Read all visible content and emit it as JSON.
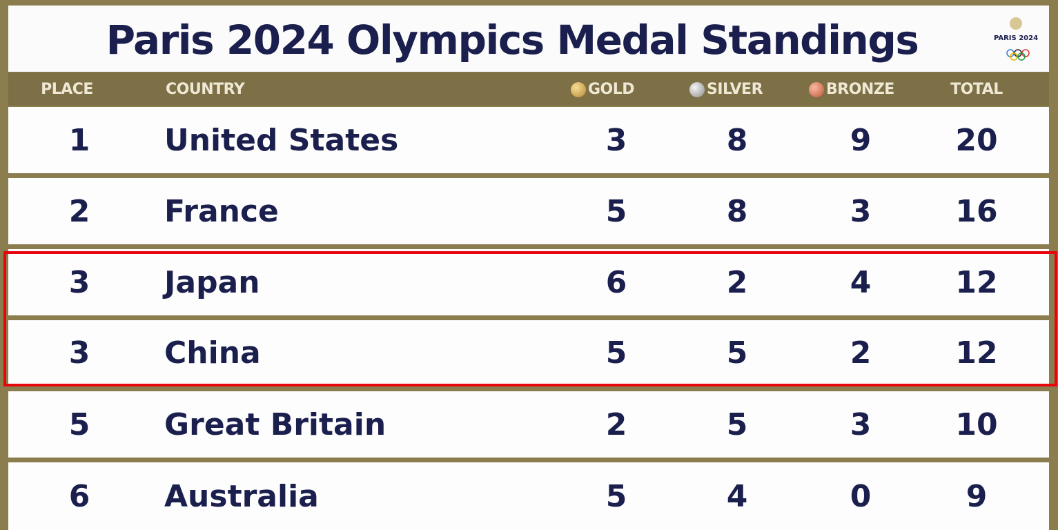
{
  "header": {
    "title": "Paris 2024  Olympics Medal Standings",
    "logo": "PARIS 2024"
  },
  "table": {
    "columns": [
      "PLACE",
      "COUNTRY",
      "GOLD",
      "SILVER",
      "BRONZE",
      "TOTAL"
    ],
    "rows": [
      [
        1,
        "United States",
        3,
        8,
        9,
        20
      ],
      [
        2,
        "France",
        5,
        8,
        3,
        16
      ],
      [
        3,
        "Japan",
        6,
        2,
        4,
        12
      ],
      [
        3,
        "China",
        5,
        5,
        2,
        12
      ],
      [
        5,
        "Great Britain",
        2,
        5,
        3,
        10
      ],
      [
        6,
        "Australia",
        5,
        4,
        0,
        9
      ]
    ]
  }
}
